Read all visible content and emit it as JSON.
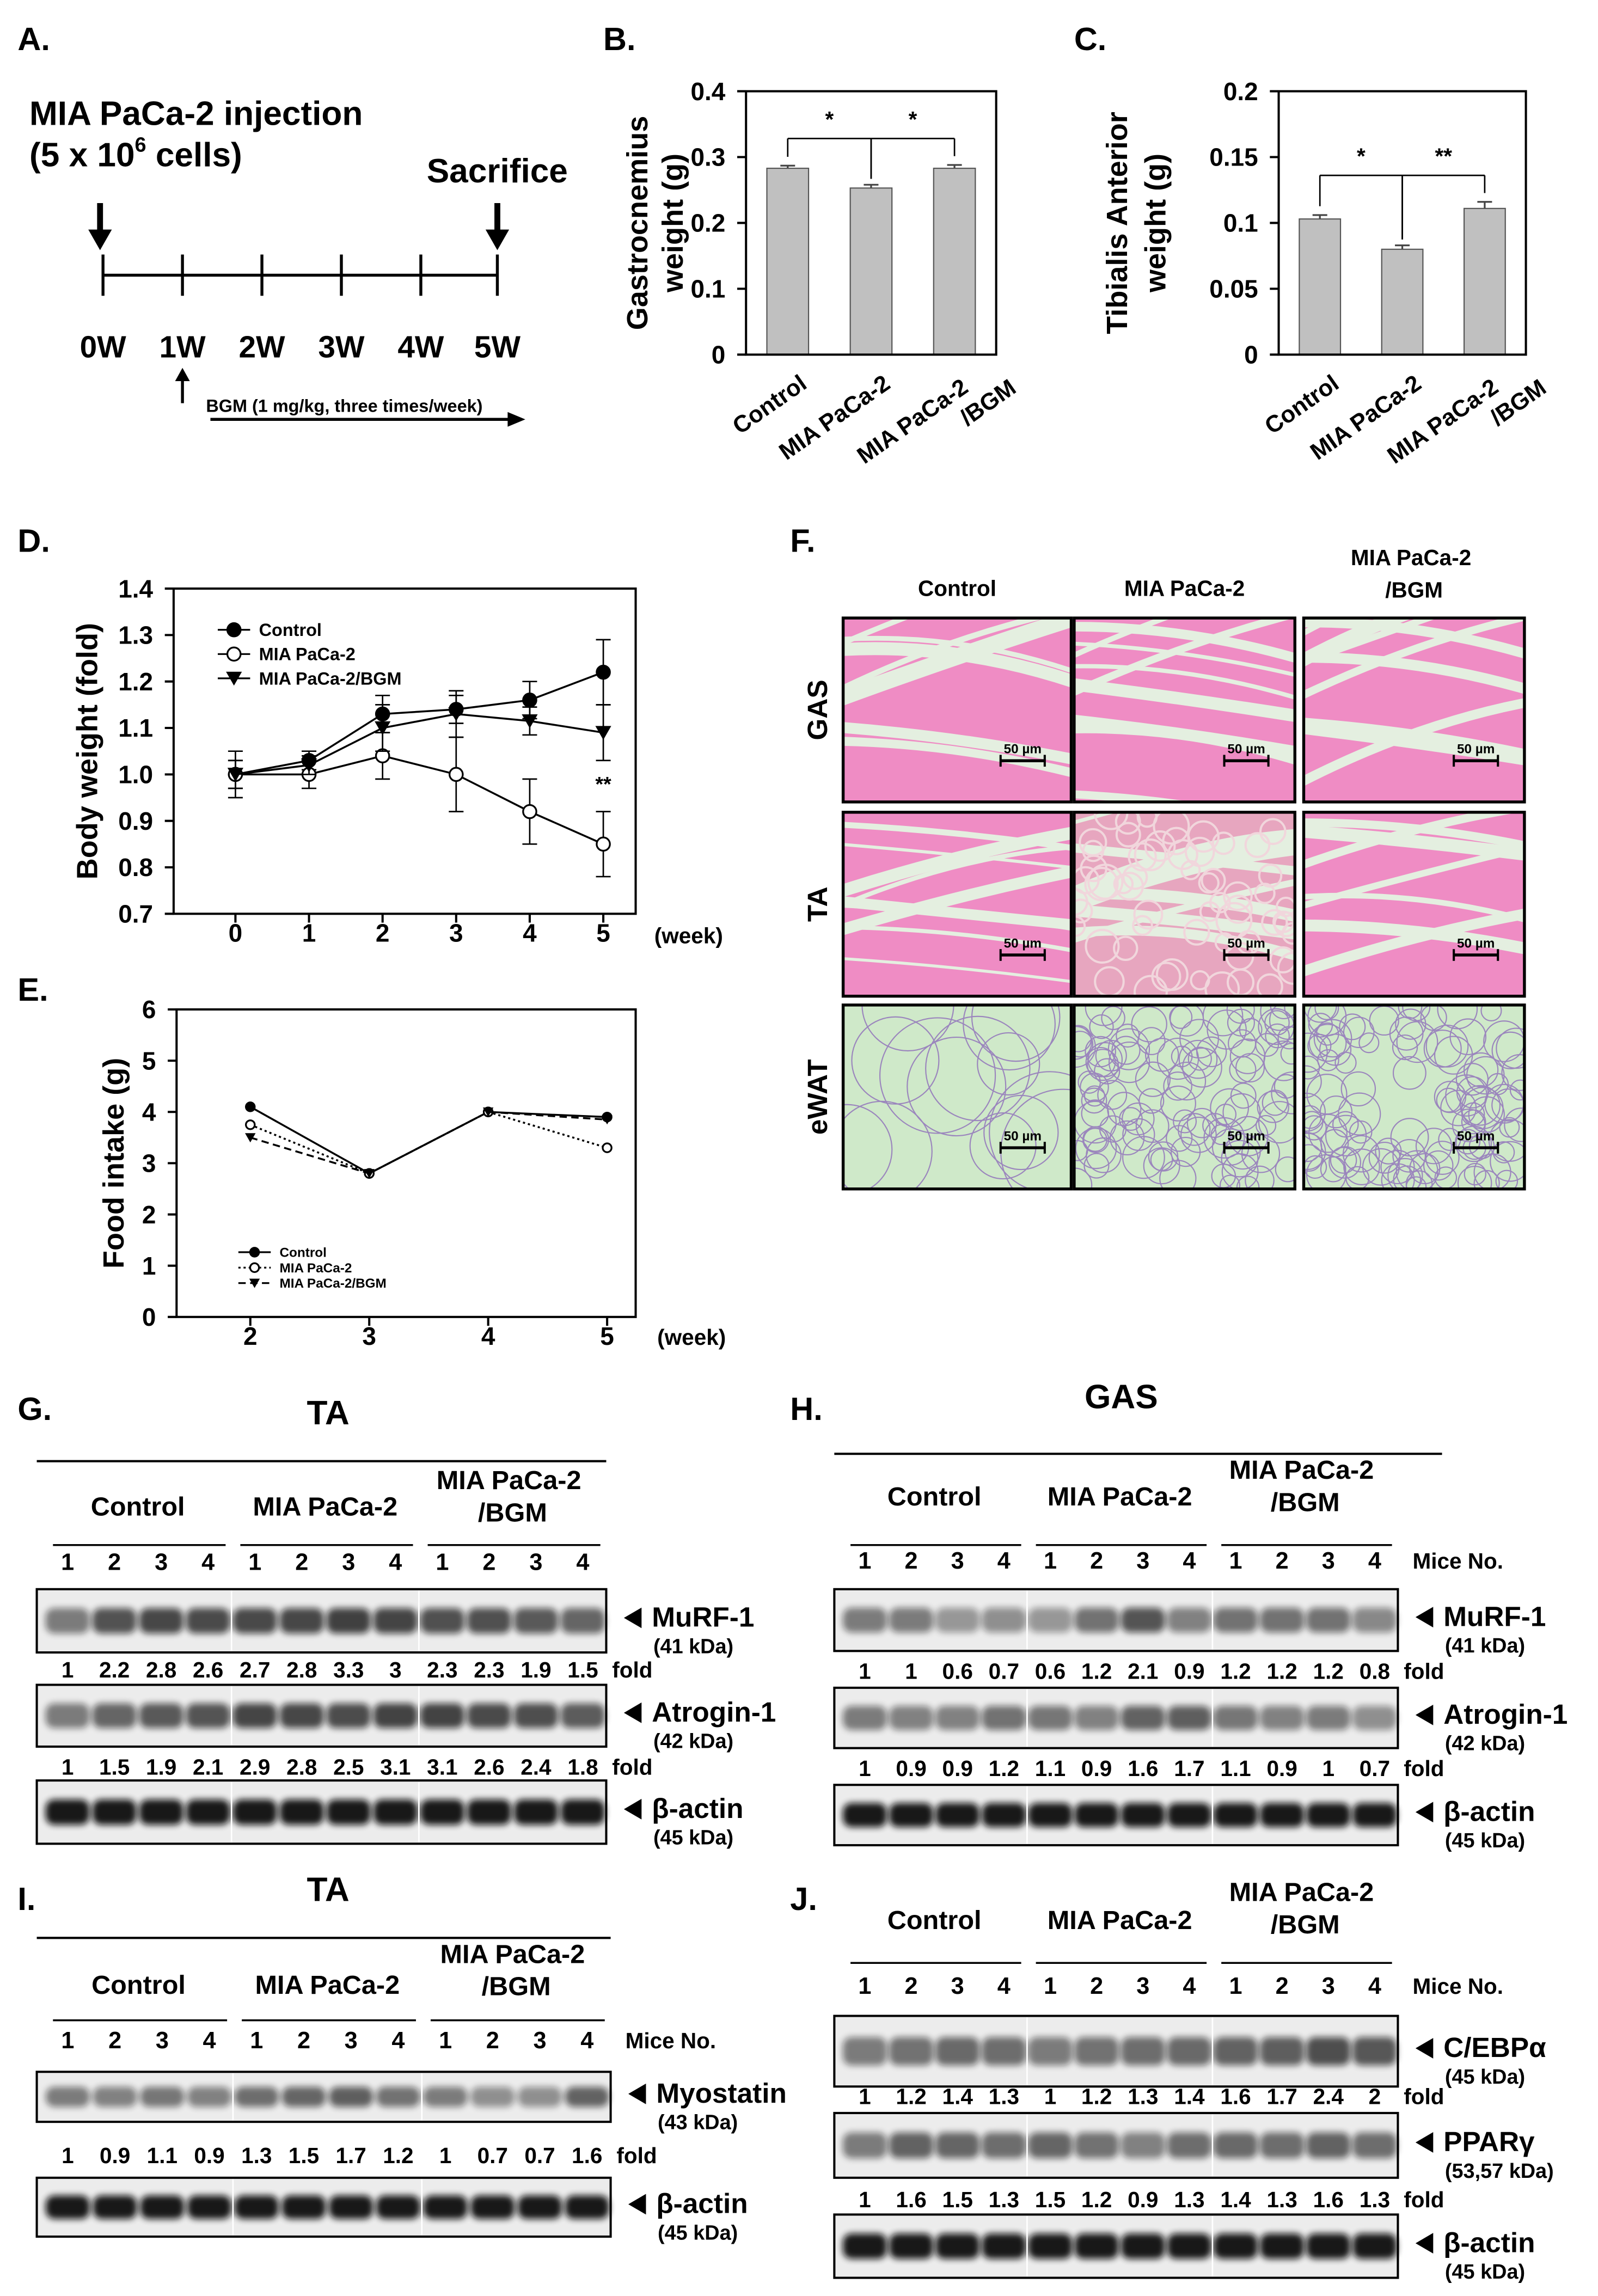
{
  "panel_labels": [
    "A.",
    "B.",
    "C.",
    "D.",
    "E.",
    "F.",
    "G.",
    "H.",
    "I.",
    "J."
  ],
  "timeline": {
    "injection": "MIA PaCa-2 injection",
    "cells": [
      "(5 x 10",
      "6",
      " cells)"
    ],
    "sacrifice": "Sacrifice",
    "weeks": [
      "0W",
      "1W",
      "2W",
      "3W",
      "4W",
      "5W"
    ],
    "treatment": "BGM (1 mg/kg, three times/week)"
  },
  "chart_data": [
    {
      "type": "bar",
      "ylabel": [
        "Gastrocnemius",
        "weight (g)"
      ],
      "categories": [
        "Control",
        "MIA PaCa-2",
        "MIA PaCa-2 /BGM"
      ],
      "values": [
        0.283,
        0.253,
        0.283
      ],
      "errors": [
        0.004,
        0.005,
        0.005
      ],
      "color": "#c0c0c0",
      "ylim": [
        0,
        0.4
      ],
      "yticks": [
        0,
        0.1,
        0.2,
        0.3,
        0.4
      ],
      "annotations": [
        "*",
        "*"
      ]
    },
    {
      "type": "bar",
      "ylabel": [
        "Tibialis Anterior",
        "weight (g)"
      ],
      "categories": [
        "Control",
        "MIA PaCa-2",
        "MIA PaCa-2 /BGM"
      ],
      "values": [
        0.103,
        0.08,
        0.111
      ],
      "errors": [
        0.003,
        0.003,
        0.005
      ],
      "color": "#c0c0c0",
      "ylim": [
        0,
        0.2
      ],
      "yticks": [
        0,
        0.05,
        0.1,
        0.15,
        0.2
      ],
      "annotations": [
        "*",
        "**"
      ]
    },
    {
      "type": "line",
      "ylabel": "Body weight (fold)",
      "xlabel": "(week)",
      "x": [
        0,
        1,
        2,
        3,
        4,
        5
      ],
      "xlim": [
        -0.84,
        5.44
      ],
      "xticks": [
        0,
        1,
        2,
        3,
        4,
        5
      ],
      "ylim": [
        0.7,
        1.4
      ],
      "yticks": [
        0.7,
        0.8,
        0.9,
        {
          "value": 1,
          "label": "1.0"
        },
        1.1,
        1.2,
        1.3,
        1.4
      ],
      "legend": "upper left",
      "series": [
        {
          "name": "Control",
          "color": "#000000",
          "marker": "filled circle",
          "linestyle": "solid",
          "values": [
            1.0,
            1.03,
            1.13,
            1.14,
            1.16,
            1.22
          ],
          "errors": [
            0.03,
            0.02,
            0.04,
            0.03,
            0.04,
            0.07
          ]
        },
        {
          "name": "MIA PaCa-2",
          "color": "#000000",
          "marker": "open circle",
          "linestyle": "solid",
          "values": [
            1.0,
            1.0,
            1.04,
            1.0,
            0.92,
            0.85
          ],
          "errors": [
            0.03,
            0.03,
            0.05,
            0.08,
            0.07,
            0.07
          ]
        },
        {
          "name": "MIA PaCa-2/BGM",
          "color": "#000000",
          "marker": "filled triangle",
          "linestyle": "solid",
          "values": [
            1.0,
            1.02,
            1.1,
            1.13,
            1.115,
            1.09
          ],
          "errors": [
            0.05,
            0.02,
            0.05,
            0.05,
            0.03,
            0.06
          ]
        }
      ],
      "annotations": [
        "**"
      ]
    },
    {
      "type": "line",
      "ylabel": "Food intake (g)",
      "xlabel": "(week)",
      "x": [
        2,
        3,
        4,
        5
      ],
      "xlim": [
        1.38,
        5.24
      ],
      "xticks": [
        2,
        3,
        4,
        5
      ],
      "ylim": [
        0,
        6
      ],
      "yticks": [
        0,
        1,
        2,
        3,
        4,
        5,
        6
      ],
      "legend": "lower left",
      "series": [
        {
          "name": "Control",
          "color": "#000000",
          "marker": "filled circle",
          "linestyle": "solid",
          "values": [
            4.1,
            2.8,
            4.0,
            3.9
          ]
        },
        {
          "name": "MIA PaCa-2",
          "color": "#000000",
          "marker": "open circle",
          "linestyle": "dotted",
          "values": [
            3.75,
            2.8,
            4.0,
            3.3
          ]
        },
        {
          "name": "MIA PaCa-2/BGM",
          "color": "#000000",
          "marker": "filled triangle",
          "linestyle": "dashed",
          "values": [
            3.5,
            2.8,
            4.0,
            3.85
          ]
        }
      ]
    }
  ],
  "histology": {
    "columns": [
      "Control",
      "MIA PaCa-2",
      "MIA PaCa-2 /BGM"
    ],
    "rows": [
      "GAS",
      "TA",
      "eWAT"
    ],
    "scale_bar": "50 µm"
  },
  "blots": [
    {
      "title": "TA",
      "groups": [
        "Control",
        "MIA PaCa-2",
        "MIA PaCa-2 /BGM"
      ],
      "lanes": [
        1,
        2,
        3,
        4
      ],
      "fold_label": "fold",
      "rows": [
        {
          "name": "MuRF-1",
          "size": "(41 kDa)",
          "fold": [
            1,
            2.2,
            2.8,
            2.6,
            2.7,
            2.8,
            3.3,
            3,
            2.3,
            2.3,
            1.9,
            1.5
          ]
        },
        {
          "name": "Atrogin-1",
          "size": "(42 kDa)",
          "fold": [
            1,
            1.5,
            1.9,
            2.1,
            2.9,
            2.8,
            2.5,
            3.1,
            3.1,
            2.6,
            2.4,
            1.8
          ]
        },
        {
          "name": "β-actin",
          "size": "(45 kDa)"
        }
      ]
    },
    {
      "title": "GAS",
      "groups": [
        "Control",
        "MIA PaCa-2",
        "MIA PaCa-2 /BGM"
      ],
      "lanes": [
        1,
        2,
        3,
        4
      ],
      "mice_label": "Mice No.",
      "fold_label": "fold",
      "rows": [
        {
          "name": "MuRF-1",
          "size": "(41 kDa)",
          "fold": [
            1,
            1,
            0.6,
            0.7,
            0.6,
            1.2,
            2.1,
            0.9,
            1.2,
            1.2,
            1.2,
            0.8
          ]
        },
        {
          "name": "Atrogin-1",
          "size": "(42 kDa)",
          "fold": [
            1,
            0.9,
            0.9,
            1.2,
            1.1,
            0.9,
            1.6,
            1.7,
            1.1,
            0.9,
            1,
            0.7
          ]
        },
        {
          "name": "β-actin",
          "size": "(45 kDa)"
        }
      ]
    },
    {
      "title": "TA",
      "groups": [
        "Control",
        "MIA PaCa-2",
        "MIA PaCa-2 /BGM"
      ],
      "lanes": [
        1,
        2,
        3,
        4
      ],
      "mice_label": "Mice No.",
      "fold_label": "fold",
      "rows": [
        {
          "name": "Myostatin",
          "size": "(43 kDa)",
          "fold": [
            1,
            0.9,
            1.1,
            0.9,
            1.3,
            1.5,
            1.7,
            1.2,
            1,
            0.7,
            0.7,
            1.6
          ]
        },
        {
          "name": "β-actin",
          "size": "(45 kDa)"
        }
      ]
    },
    {
      "groups": [
        "Control",
        "MIA PaCa-2",
        "MIA PaCa-2 /BGM"
      ],
      "lanes": [
        1,
        2,
        3,
        4
      ],
      "mice_label": "Mice No.",
      "fold_label": "fold",
      "rows": [
        {
          "name": "C/EBPα",
          "size": "(45 kDa)",
          "fold": [
            1,
            1.2,
            1.4,
            1.3,
            1,
            1.2,
            1.3,
            1.4,
            1.6,
            1.7,
            2.4,
            2
          ]
        },
        {
          "name": "PPARγ",
          "size": "(53,57 kDa)",
          "fold": [
            1,
            1.6,
            1.5,
            1.3,
            1.5,
            1.2,
            0.9,
            1.3,
            1.4,
            1.3,
            1.6,
            1.3
          ]
        },
        {
          "name": "β-actin",
          "size": "(45 kDa)"
        }
      ]
    }
  ]
}
